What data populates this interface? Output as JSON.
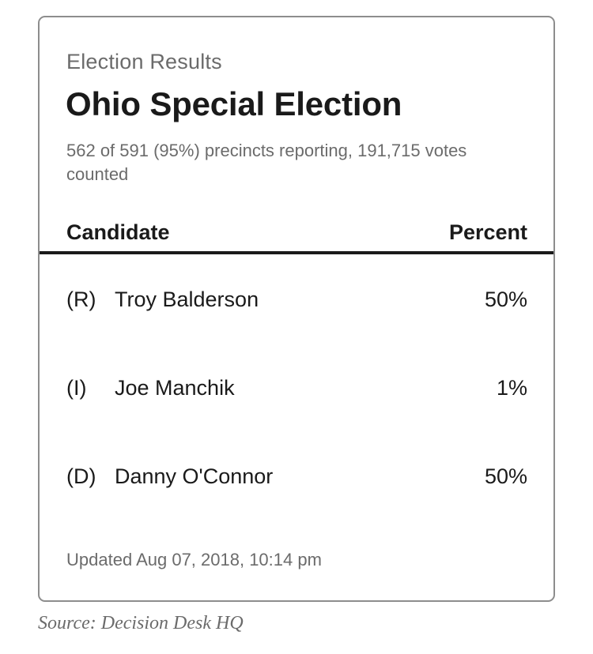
{
  "card": {
    "kicker": "Election Results",
    "title": "Ohio Special Election",
    "meta": "562 of 591 (95%) precincts reporting, 191,715 votes counted",
    "table": {
      "header_candidate": "Candidate",
      "header_percent": "Percent",
      "rows": [
        {
          "party": "(R)",
          "name": "Troy Balderson",
          "percent": "50%"
        },
        {
          "party": "(I)",
          "name": "Joe Manchik",
          "percent": "1%"
        },
        {
          "party": "(D)",
          "name": "Danny O'Connor",
          "percent": "50%"
        }
      ]
    },
    "updated": "Updated Aug 07, 2018, 10:14 pm"
  },
  "source": "Source: Decision Desk HQ"
}
